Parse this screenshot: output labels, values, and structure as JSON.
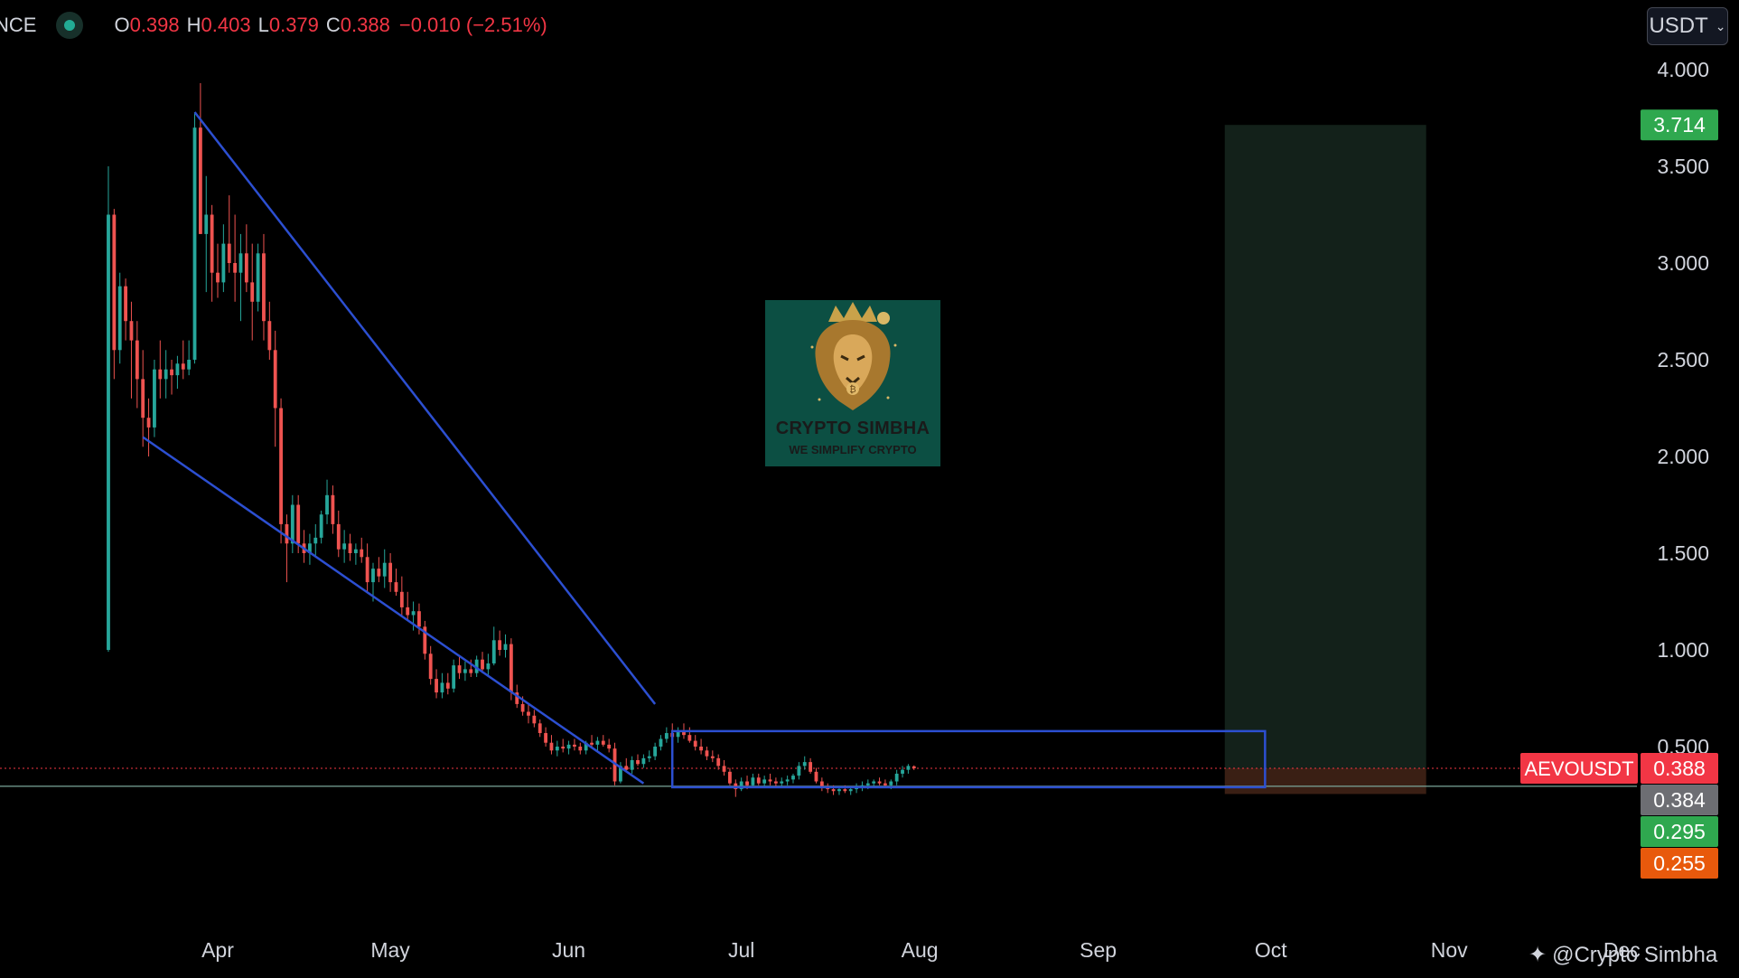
{
  "header": {
    "exchange_fragment": "NCE",
    "open_label": "O",
    "open": "0.398",
    "high_label": "H",
    "high": "0.403",
    "low_label": "L",
    "low": "0.379",
    "close_label": "C",
    "close": "0.388",
    "change": "−0.010 (−2.51%)"
  },
  "currency": {
    "label": "USDT",
    "icon": "chevron-down-icon"
  },
  "logo": {
    "title": "CRYPTO SIMBHA",
    "subtitle": "WE SIMPLIFY CRYPTO",
    "icon": "lion-crown-icon"
  },
  "watermark": {
    "text": "@Crypto Simbha",
    "icon": "tradingview-logo-icon"
  },
  "colors": {
    "background": "#000000",
    "up": "#26a69a",
    "down": "#ef5350",
    "trendline": "#2c4fd1",
    "target_zone": "#13211a",
    "stop_zone": "#3a1f14",
    "last_price_tag": "#f23645",
    "target_tag": "#2fa84f",
    "stop_tag": "#e8590c",
    "muted_tag": "#6d6e73"
  },
  "chart_data": {
    "type": "candlestick",
    "symbol": "AEVOUSDT",
    "x_ticks": [
      "Apr",
      "May",
      "Jun",
      "Jul",
      "Aug",
      "Sep",
      "Oct",
      "Nov",
      "Dec"
    ],
    "y_ticks": [
      "4.000",
      "3.500",
      "3.000",
      "2.500",
      "2.000",
      "1.500",
      "1.000",
      "0.500"
    ],
    "ylim": [
      0,
      4.1
    ],
    "grid": false,
    "series": [
      {
        "timeframe": "1D",
        "start_date": "2024-03-13",
        "ohlc": [
          [
            1.0,
            3.5,
            0.99,
            3.25
          ],
          [
            3.25,
            3.28,
            2.4,
            2.55
          ],
          [
            2.55,
            2.95,
            2.48,
            2.88
          ],
          [
            2.88,
            2.92,
            2.6,
            2.7
          ],
          [
            2.7,
            2.8,
            2.3,
            2.6
          ],
          [
            2.6,
            2.7,
            2.25,
            2.4
          ],
          [
            2.4,
            2.55,
            2.05,
            2.2
          ],
          [
            2.2,
            2.3,
            2.0,
            2.15
          ],
          [
            2.15,
            2.5,
            2.1,
            2.45
          ],
          [
            2.45,
            2.6,
            2.3,
            2.4
          ],
          [
            2.4,
            2.55,
            2.3,
            2.45
          ],
          [
            2.45,
            2.5,
            2.32,
            2.42
          ],
          [
            2.42,
            2.52,
            2.35,
            2.48
          ],
          [
            2.48,
            2.6,
            2.4,
            2.45
          ],
          [
            2.45,
            2.6,
            2.42,
            2.5
          ],
          [
            2.5,
            3.78,
            2.48,
            3.7
          ],
          [
            3.7,
            3.93,
            3.15,
            3.15
          ],
          [
            3.15,
            3.45,
            2.85,
            3.25
          ],
          [
            3.25,
            3.3,
            2.8,
            2.95
          ],
          [
            2.95,
            3.1,
            2.82,
            2.9
          ],
          [
            2.9,
            3.2,
            2.85,
            3.1
          ],
          [
            3.1,
            3.35,
            2.95,
            3.0
          ],
          [
            3.0,
            3.25,
            2.8,
            2.95
          ],
          [
            2.95,
            3.15,
            2.7,
            3.05
          ],
          [
            3.05,
            3.2,
            2.85,
            2.9
          ],
          [
            2.9,
            3.1,
            2.6,
            2.8
          ],
          [
            2.8,
            3.1,
            2.75,
            3.05
          ],
          [
            3.05,
            3.15,
            2.6,
            2.7
          ],
          [
            2.7,
            2.8,
            2.5,
            2.55
          ],
          [
            2.55,
            2.65,
            2.05,
            2.25
          ],
          [
            2.25,
            2.3,
            1.55,
            1.65
          ],
          [
            1.65,
            1.7,
            1.35,
            1.55
          ],
          [
            1.55,
            1.8,
            1.5,
            1.75
          ],
          [
            1.75,
            1.8,
            1.5,
            1.55
          ],
          [
            1.55,
            1.62,
            1.45,
            1.5
          ],
          [
            1.5,
            1.6,
            1.44,
            1.55
          ],
          [
            1.55,
            1.65,
            1.48,
            1.58
          ],
          [
            1.58,
            1.72,
            1.55,
            1.7
          ],
          [
            1.7,
            1.88,
            1.65,
            1.8
          ],
          [
            1.8,
            1.85,
            1.6,
            1.65
          ],
          [
            1.65,
            1.72,
            1.48,
            1.52
          ],
          [
            1.52,
            1.62,
            1.45,
            1.55
          ],
          [
            1.55,
            1.6,
            1.46,
            1.5
          ],
          [
            1.5,
            1.55,
            1.44,
            1.52
          ],
          [
            1.52,
            1.58,
            1.45,
            1.48
          ],
          [
            1.48,
            1.55,
            1.3,
            1.35
          ],
          [
            1.35,
            1.45,
            1.25,
            1.42
          ],
          [
            1.42,
            1.48,
            1.35,
            1.38
          ],
          [
            1.38,
            1.52,
            1.32,
            1.45
          ],
          [
            1.45,
            1.5,
            1.3,
            1.35
          ],
          [
            1.35,
            1.42,
            1.28,
            1.3
          ],
          [
            1.3,
            1.38,
            1.18,
            1.22
          ],
          [
            1.22,
            1.3,
            1.15,
            1.18
          ],
          [
            1.18,
            1.25,
            1.1,
            1.2
          ],
          [
            1.2,
            1.24,
            1.08,
            1.12
          ],
          [
            1.12,
            1.15,
            0.95,
            0.98
          ],
          [
            0.98,
            1.02,
            0.82,
            0.85
          ],
          [
            0.85,
            0.9,
            0.75,
            0.78
          ],
          [
            0.78,
            0.88,
            0.75,
            0.83
          ],
          [
            0.83,
            0.88,
            0.77,
            0.8
          ],
          [
            0.8,
            0.95,
            0.78,
            0.92
          ],
          [
            0.92,
            0.97,
            0.85,
            0.88
          ],
          [
            0.88,
            0.94,
            0.84,
            0.9
          ],
          [
            0.9,
            0.95,
            0.86,
            0.88
          ],
          [
            0.88,
            0.97,
            0.86,
            0.95
          ],
          [
            0.95,
            0.99,
            0.88,
            0.9
          ],
          [
            0.9,
            0.98,
            0.86,
            0.93
          ],
          [
            0.93,
            1.12,
            0.92,
            1.05
          ],
          [
            1.05,
            1.1,
            0.97,
            1.0
          ],
          [
            1.0,
            1.08,
            0.96,
            1.03
          ],
          [
            1.03,
            1.06,
            0.74,
            0.78
          ],
          [
            0.78,
            0.82,
            0.7,
            0.72
          ],
          [
            0.72,
            0.76,
            0.66,
            0.68
          ],
          [
            0.68,
            0.72,
            0.62,
            0.66
          ],
          [
            0.66,
            0.69,
            0.6,
            0.62
          ],
          [
            0.62,
            0.64,
            0.55,
            0.57
          ],
          [
            0.57,
            0.6,
            0.5,
            0.52
          ],
          [
            0.52,
            0.56,
            0.46,
            0.48
          ],
          [
            0.48,
            0.53,
            0.45,
            0.5
          ],
          [
            0.5,
            0.54,
            0.47,
            0.49
          ],
          [
            0.49,
            0.53,
            0.46,
            0.51
          ],
          [
            0.51,
            0.54,
            0.48,
            0.5
          ],
          [
            0.5,
            0.52,
            0.46,
            0.48
          ],
          [
            0.48,
            0.53,
            0.46,
            0.52
          ],
          [
            0.52,
            0.56,
            0.49,
            0.51
          ],
          [
            0.51,
            0.55,
            0.48,
            0.53
          ],
          [
            0.53,
            0.56,
            0.5,
            0.51
          ],
          [
            0.51,
            0.54,
            0.47,
            0.49
          ],
          [
            0.49,
            0.52,
            0.3,
            0.32
          ],
          [
            0.32,
            0.42,
            0.31,
            0.4
          ],
          [
            0.4,
            0.44,
            0.37,
            0.38
          ],
          [
            0.38,
            0.45,
            0.36,
            0.43
          ],
          [
            0.43,
            0.46,
            0.4,
            0.41
          ],
          [
            0.41,
            0.46,
            0.39,
            0.44
          ],
          [
            0.44,
            0.48,
            0.42,
            0.45
          ],
          [
            0.45,
            0.52,
            0.43,
            0.5
          ],
          [
            0.5,
            0.56,
            0.48,
            0.54
          ],
          [
            0.54,
            0.6,
            0.52,
            0.57
          ],
          [
            0.57,
            0.62,
            0.54,
            0.55
          ],
          [
            0.55,
            0.6,
            0.52,
            0.58
          ],
          [
            0.58,
            0.62,
            0.54,
            0.56
          ],
          [
            0.56,
            0.6,
            0.52,
            0.53
          ],
          [
            0.53,
            0.56,
            0.48,
            0.5
          ],
          [
            0.5,
            0.54,
            0.46,
            0.48
          ],
          [
            0.48,
            0.5,
            0.43,
            0.45
          ],
          [
            0.45,
            0.48,
            0.42,
            0.44
          ],
          [
            0.44,
            0.46,
            0.38,
            0.4
          ],
          [
            0.4,
            0.43,
            0.35,
            0.37
          ],
          [
            0.37,
            0.39,
            0.3,
            0.31
          ],
          [
            0.31,
            0.33,
            0.24,
            0.28
          ],
          [
            0.28,
            0.34,
            0.27,
            0.32
          ],
          [
            0.32,
            0.35,
            0.28,
            0.3
          ],
          [
            0.3,
            0.36,
            0.29,
            0.34
          ],
          [
            0.34,
            0.36,
            0.3,
            0.31
          ],
          [
            0.31,
            0.35,
            0.29,
            0.33
          ],
          [
            0.33,
            0.36,
            0.3,
            0.32
          ],
          [
            0.32,
            0.34,
            0.29,
            0.31
          ],
          [
            0.31,
            0.34,
            0.29,
            0.32
          ],
          [
            0.32,
            0.35,
            0.3,
            0.33
          ],
          [
            0.33,
            0.36,
            0.31,
            0.35
          ],
          [
            0.35,
            0.42,
            0.33,
            0.4
          ],
          [
            0.4,
            0.45,
            0.38,
            0.42
          ],
          [
            0.42,
            0.44,
            0.36,
            0.37
          ],
          [
            0.37,
            0.39,
            0.31,
            0.32
          ],
          [
            0.32,
            0.34,
            0.27,
            0.29
          ],
          [
            0.29,
            0.31,
            0.26,
            0.28
          ],
          [
            0.28,
            0.3,
            0.25,
            0.27
          ],
          [
            0.27,
            0.29,
            0.25,
            0.28
          ],
          [
            0.28,
            0.3,
            0.26,
            0.27
          ],
          [
            0.27,
            0.29,
            0.25,
            0.28
          ],
          [
            0.28,
            0.31,
            0.26,
            0.29
          ],
          [
            0.29,
            0.32,
            0.27,
            0.3
          ],
          [
            0.3,
            0.33,
            0.28,
            0.31
          ],
          [
            0.31,
            0.33,
            0.29,
            0.32
          ],
          [
            0.32,
            0.34,
            0.3,
            0.31
          ],
          [
            0.31,
            0.33,
            0.29,
            0.3
          ],
          [
            0.3,
            0.33,
            0.28,
            0.32
          ],
          [
            0.32,
            0.38,
            0.3,
            0.36
          ],
          [
            0.36,
            0.4,
            0.34,
            0.38
          ],
          [
            0.38,
            0.41,
            0.36,
            0.4
          ],
          [
            0.398,
            0.403,
            0.379,
            0.388
          ]
        ]
      }
    ],
    "drawings": {
      "upper_trendline": {
        "from": [
          "2024-03-28",
          3.78
        ],
        "to": [
          "2024-06-16",
          0.72
        ]
      },
      "lower_trendline": {
        "from": [
          "2024-03-19",
          2.1
        ],
        "to": [
          "2024-06-14",
          0.31
        ]
      },
      "range_box": {
        "from_date": "2024-06-19",
        "to_date": "2024-09-30",
        "top": 0.58,
        "bottom": 0.29
      },
      "position": {
        "from_date": "2024-09-23",
        "to_date": "2024-10-28",
        "entry": 0.388,
        "target": 3.714,
        "stop": 0.255
      },
      "horizontal_line": 0.295
    },
    "price_labels": [
      {
        "text": "3.714",
        "value": 3.714,
        "kind": "target"
      },
      {
        "text": "0.388",
        "value": 0.388,
        "kind": "last",
        "symbol_tag": "AEVOUSDT"
      },
      {
        "text": "0.384",
        "value": 0.384,
        "kind": "muted"
      },
      {
        "text": "0.295",
        "value": 0.295,
        "kind": "target"
      },
      {
        "text": "0.255",
        "value": 0.255,
        "kind": "stop"
      }
    ]
  }
}
